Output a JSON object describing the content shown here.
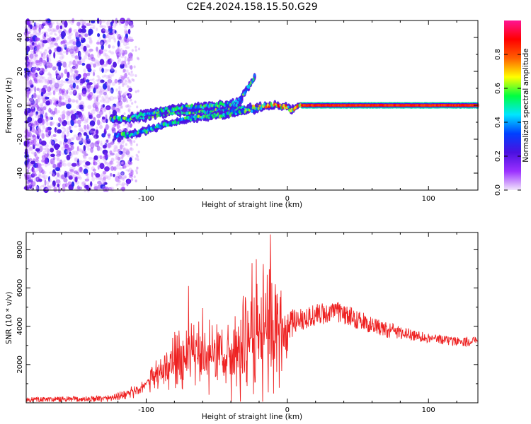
{
  "title": "C2E4.2024.158.15.50.G29",
  "chart_data": [
    {
      "type": "heatmap",
      "name": "spectrogram",
      "xlabel": "Height of straight line (km)",
      "ylabel": "Frequency (Hz)",
      "xlim": [
        -185,
        135
      ],
      "ylim": [
        -50,
        50
      ],
      "xticks": [
        -100,
        0,
        100
      ],
      "yticks": [
        -40,
        -20,
        0,
        20,
        40
      ],
      "colorbar": {
        "label": "Normalized spectral amplitude",
        "range": [
          0,
          1
        ],
        "ticks": [
          "0.0",
          "0.2",
          "0.4",
          "0.6",
          "0.8"
        ],
        "stops": [
          "#f2e6fb",
          "#9b30ff",
          "#4b10e0",
          "#0040ff",
          "#00e5ff",
          "#00ff40",
          "#ffff00",
          "#ff6000",
          "#ff0000",
          "#ff1493"
        ]
      },
      "traces": [
        {
          "name": "main",
          "points": [
            [
              -125,
              -8
            ],
            [
              -110,
              -8
            ],
            [
              -100,
              -7
            ],
            [
              -90,
              -5
            ],
            [
              -80,
              -4
            ],
            [
              -70,
              -4
            ],
            [
              -60,
              -4
            ],
            [
              -50,
              -3
            ],
            [
              -40,
              -2
            ],
            [
              -30,
              -2
            ],
            [
              -20,
              -1
            ],
            [
              -10,
              0
            ],
            [
              0,
              -1
            ],
            [
              3,
              -3
            ],
            [
              8,
              0
            ],
            [
              20,
              0
            ],
            [
              135,
              0
            ]
          ]
        },
        {
          "name": "lower",
          "points": [
            [
              -122,
              -18
            ],
            [
              -110,
              -17
            ],
            [
              -100,
              -15
            ],
            [
              -90,
              -12
            ],
            [
              -80,
              -10
            ],
            [
              -70,
              -8
            ],
            [
              -60,
              -7
            ],
            [
              -50,
              -6
            ],
            [
              -40,
              -5
            ],
            [
              -30,
              -3
            ],
            [
              -20,
              -2
            ]
          ]
        },
        {
          "name": "upper",
          "points": [
            [
              -110,
              -7
            ],
            [
              -95,
              -4
            ],
            [
              -80,
              -2
            ],
            [
              -70,
              -1
            ],
            [
              -60,
              -1
            ],
            [
              -50,
              0
            ],
            [
              -40,
              1
            ],
            [
              -32,
              3
            ]
          ]
        },
        {
          "name": "branch",
          "points": [
            [
              -40,
              -3
            ],
            [
              -35,
              2
            ],
            [
              -30,
              8
            ],
            [
              -26,
              13
            ],
            [
              -23,
              17
            ]
          ]
        }
      ]
    },
    {
      "type": "line",
      "name": "snr",
      "xlabel": "Height of straight line (km)",
      "ylabel": "SNR (10 * v/v)",
      "xlim": [
        -185,
        135
      ],
      "ylim": [
        0,
        8900
      ],
      "xticks": [
        -100,
        0,
        100
      ],
      "yticks": [
        2000,
        4000,
        6000,
        8000
      ],
      "color": "#ee2222",
      "envelope": [
        [
          -185,
          150
        ],
        [
          -130,
          200
        ],
        [
          -115,
          400
        ],
        [
          -105,
          700
        ],
        [
          -95,
          1300
        ],
        [
          -85,
          1900
        ],
        [
          -75,
          2500
        ],
        [
          -65,
          2500
        ],
        [
          -55,
          2300
        ],
        [
          -45,
          2400
        ],
        [
          -35,
          2700
        ],
        [
          -25,
          3200
        ],
        [
          -15,
          3700
        ],
        [
          -10,
          3900
        ],
        [
          -5,
          3900
        ],
        [
          0,
          3700
        ],
        [
          5,
          4300
        ],
        [
          15,
          4500
        ],
        [
          25,
          4650
        ],
        [
          35,
          4750
        ],
        [
          45,
          4500
        ],
        [
          55,
          4200
        ],
        [
          65,
          3900
        ],
        [
          75,
          3750
        ],
        [
          85,
          3600
        ],
        [
          95,
          3450
        ],
        [
          105,
          3350
        ],
        [
          115,
          3250
        ],
        [
          125,
          3200
        ],
        [
          135,
          3200
        ]
      ],
      "noise": [
        [
          -185,
          200
        ],
        [
          -130,
          250
        ],
        [
          -115,
          300
        ],
        [
          -100,
          600
        ],
        [
          -90,
          1100
        ],
        [
          -75,
          2000
        ],
        [
          -60,
          2300
        ],
        [
          -45,
          2600
        ],
        [
          -30,
          3200
        ],
        [
          -20,
          3800
        ],
        [
          -10,
          4200
        ],
        [
          -5,
          4200
        ],
        [
          0,
          1500
        ],
        [
          5,
          900
        ],
        [
          15,
          900
        ],
        [
          30,
          800
        ],
        [
          50,
          700
        ],
        [
          70,
          600
        ],
        [
          90,
          400
        ],
        [
          110,
          350
        ],
        [
          135,
          350
        ]
      ],
      "peaks": [
        [
          -70,
          6100
        ],
        [
          -60,
          4950
        ],
        [
          -50,
          4100
        ],
        [
          -25,
          7300
        ],
        [
          -22,
          7500
        ],
        [
          -12,
          8800
        ],
        [
          -17,
          7250
        ]
      ]
    }
  ]
}
